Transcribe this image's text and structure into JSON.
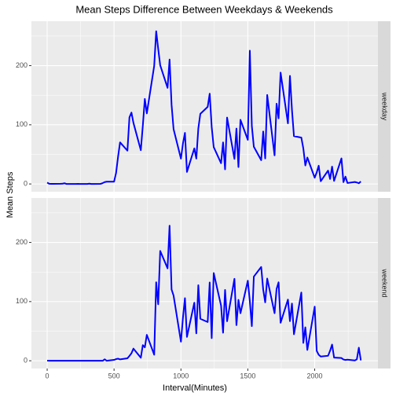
{
  "chart_data": {
    "type": "line",
    "facet": true,
    "title": "Mean Steps Difference Between Weekdays & Weekends",
    "xlabel": "Interval(Minutes)",
    "ylabel": "Mean Steps",
    "x": [
      0,
      15,
      30,
      45,
      100,
      115,
      130,
      145,
      200,
      215,
      230,
      245,
      300,
      315,
      330,
      345,
      400,
      415,
      430,
      445,
      500,
      515,
      530,
      545,
      600,
      615,
      630,
      645,
      700,
      715,
      730,
      745,
      800,
      815,
      830,
      845,
      900,
      915,
      930,
      945,
      1000,
      1015,
      1030,
      1045,
      1100,
      1115,
      1130,
      1145,
      1200,
      1215,
      1230,
      1245,
      1300,
      1315,
      1330,
      1345,
      1400,
      1415,
      1430,
      1445,
      1500,
      1515,
      1530,
      1545,
      1600,
      1615,
      1630,
      1645,
      1700,
      1715,
      1730,
      1745,
      1800,
      1815,
      1830,
      1845,
      1900,
      1915,
      1930,
      1945,
      2000,
      2015,
      2030,
      2045,
      2100,
      2115,
      2130,
      2145,
      2200,
      2215,
      2230,
      2245,
      2300,
      2315,
      2330,
      2345
    ],
    "xlim": [
      -117.75,
      2472.75
    ],
    "ylim": [
      -13.1,
      275.1
    ],
    "xticks": [
      0,
      500,
      1000,
      1500,
      2000
    ],
    "yticks": [
      0,
      100,
      200
    ],
    "grid": true,
    "color": "#0000ff",
    "series": [
      {
        "name": "weekday",
        "values": [
          2.3,
          0.4,
          0.2,
          0.1,
          0.3,
          0.5,
          1.2,
          0,
          0,
          0,
          0.2,
          0,
          0,
          0.5,
          0,
          0,
          0.2,
          1.5,
          3.2,
          3.8,
          3.9,
          18.5,
          46.2,
          70.3,
          56.3,
          112.5,
          120.7,
          103.2,
          57.1,
          98.4,
          143.8,
          119.3,
          199.5,
          258.1,
          228.5,
          200.7,
          162.4,
          210.3,
          133.7,
          92.6,
          42.8,
          68.3,
          86.4,
          20.3,
          60.1,
          42.9,
          93.8,
          118.6,
          130.3,
          152.6,
          96.2,
          62.4,
          35.1,
          70.2,
          24.7,
          112.3,
          42.4,
          93.7,
          28.6,
          108.5,
          74.6,
          225.3,
          98.1,
          62.9,
          40.2,
          88.7,
          43.1,
          150.5,
          48.3,
          135.6,
          110.9,
          188.2,
          102.5,
          182.7,
          125.3,
          80.8,
          78.4,
          60.1,
          31.3,
          44.7,
          10.6,
          19.4,
          30.8,
          4.6,
          22.6,
          8.4,
          29.3,
          5.2,
          43.2,
          3.1,
          12.4,
          1.6,
          3.3,
          2.5,
          1.2,
          4.2
        ]
      },
      {
        "name": "weekend",
        "values": [
          0.2,
          0,
          0,
          0,
          0,
          0,
          0,
          0,
          0,
          0,
          0,
          0,
          0,
          0,
          0,
          0,
          0,
          0,
          2.5,
          0,
          1.5,
          2.8,
          3.5,
          2.3,
          4.1,
          8.2,
          12.6,
          20.5,
          5.1,
          26.4,
          22.7,
          43.8,
          10.2,
          132.7,
          95.4,
          185.6,
          156.2,
          228.3,
          120.4,
          110.1,
          32.2,
          72.6,
          105.8,
          40.3,
          98.1,
          46.3,
          127.6,
          70.9,
          65.4,
          132.4,
          38.2,
          148.3,
          93.2,
          47.4,
          119.7,
          66.8,
          138.5,
          60.2,
          102.9,
          80.4,
          135.3,
          100.8,
          58.5,
          142.2,
          158.5,
          120.2,
          98.7,
          138.9,
          80.4,
          121.3,
          132.6,
          64.2,
          103.4,
          66.9,
          96.7,
          44.8,
          115.3,
          30.2,
          56.4,
          18.3,
          91.5,
          16.8,
          10.1,
          7.2,
          8.4,
          16.9,
          27.3,
          5.4,
          4.6,
          2.1,
          1.3,
          1.9,
          0.5,
          2.3,
          22.1,
          0.6
        ]
      }
    ]
  }
}
